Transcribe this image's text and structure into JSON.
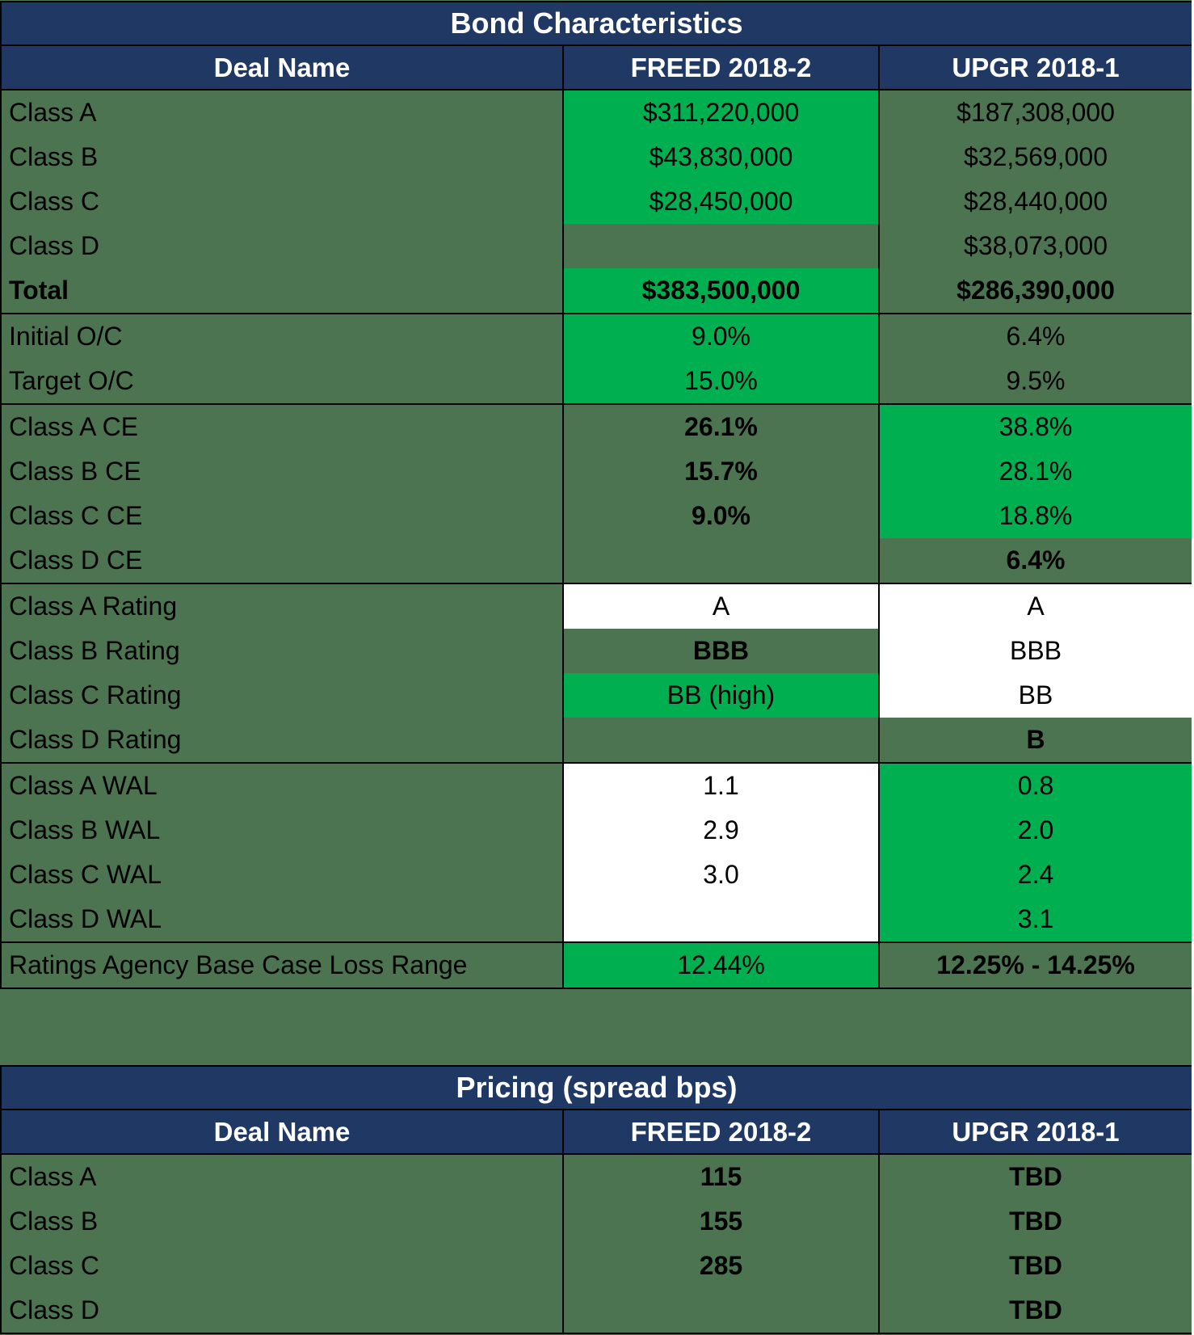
{
  "colors": {
    "header_navy": "#1F3864",
    "background_olive": "#4D7450",
    "highlight_green": "#00B050",
    "cell_white": "#FFFFFF",
    "border_black": "#000000",
    "header_text": "#FFFFFF",
    "body_text": "#000000"
  },
  "bond_table": {
    "title": "Bond Characteristics",
    "columns": [
      "Deal Name",
      "FREED 2018-2",
      "UPGR 2018-1"
    ],
    "rows": [
      {
        "label": "Class A",
        "label_bold": false,
        "freed": "$311,220,000",
        "freed_bg": "green",
        "freed_bold": false,
        "upgr": "$187,308,000",
        "upgr_bg": "olive",
        "upgr_bold": false,
        "group_end": false
      },
      {
        "label": "Class B",
        "label_bold": false,
        "freed": "$43,830,000",
        "freed_bg": "green",
        "freed_bold": false,
        "upgr": "$32,569,000",
        "upgr_bg": "olive",
        "upgr_bold": false,
        "group_end": false
      },
      {
        "label": "Class C",
        "label_bold": false,
        "freed": "$28,450,000",
        "freed_bg": "green",
        "freed_bold": false,
        "upgr": "$28,440,000",
        "upgr_bg": "olive",
        "upgr_bold": false,
        "group_end": false
      },
      {
        "label": "Class D",
        "label_bold": false,
        "freed": "",
        "freed_bg": "olive",
        "freed_bold": false,
        "upgr": "$38,073,000",
        "upgr_bg": "olive",
        "upgr_bold": false,
        "group_end": false
      },
      {
        "label": "Total",
        "label_bold": true,
        "freed": "$383,500,000",
        "freed_bg": "green",
        "freed_bold": true,
        "upgr": "$286,390,000",
        "upgr_bg": "olive",
        "upgr_bold": true,
        "group_end": true
      },
      {
        "label": "Initial O/C",
        "label_bold": false,
        "freed": "9.0%",
        "freed_bg": "green",
        "freed_bold": false,
        "upgr": "6.4%",
        "upgr_bg": "olive",
        "upgr_bold": false,
        "group_end": false
      },
      {
        "label": "Target O/C",
        "label_bold": false,
        "freed": "15.0%",
        "freed_bg": "green",
        "freed_bold": false,
        "upgr": "9.5%",
        "upgr_bg": "olive",
        "upgr_bold": false,
        "group_end": true
      },
      {
        "label": "Class A CE",
        "label_bold": false,
        "freed": "26.1%",
        "freed_bg": "olive",
        "freed_bold": true,
        "upgr": "38.8%",
        "upgr_bg": "green",
        "upgr_bold": false,
        "group_end": false
      },
      {
        "label": "Class B CE",
        "label_bold": false,
        "freed": "15.7%",
        "freed_bg": "olive",
        "freed_bold": true,
        "upgr": "28.1%",
        "upgr_bg": "green",
        "upgr_bold": false,
        "group_end": false
      },
      {
        "label": "Class C CE",
        "label_bold": false,
        "freed": "9.0%",
        "freed_bg": "olive",
        "freed_bold": true,
        "upgr": "18.8%",
        "upgr_bg": "green",
        "upgr_bold": false,
        "group_end": false
      },
      {
        "label": "Class D CE",
        "label_bold": false,
        "freed": "",
        "freed_bg": "olive",
        "freed_bold": false,
        "upgr": "6.4%",
        "upgr_bg": "olive",
        "upgr_bold": true,
        "group_end": true
      },
      {
        "label": "Class A Rating",
        "label_bold": false,
        "freed": "A",
        "freed_bg": "white",
        "freed_bold": false,
        "upgr": "A",
        "upgr_bg": "white",
        "upgr_bold": false,
        "group_end": false
      },
      {
        "label": "Class B Rating",
        "label_bold": false,
        "freed": "BBB",
        "freed_bg": "olive",
        "freed_bold": true,
        "upgr": "BBB",
        "upgr_bg": "white",
        "upgr_bold": false,
        "group_end": false
      },
      {
        "label": "Class C Rating",
        "label_bold": false,
        "freed": "BB (high)",
        "freed_bg": "green",
        "freed_bold": false,
        "upgr": "BB",
        "upgr_bg": "white",
        "upgr_bold": false,
        "group_end": false
      },
      {
        "label": "Class D Rating",
        "label_bold": false,
        "freed": "",
        "freed_bg": "olive",
        "freed_bold": false,
        "upgr": "B",
        "upgr_bg": "olive",
        "upgr_bold": true,
        "group_end": true
      },
      {
        "label": "Class A WAL",
        "label_bold": false,
        "freed": "1.1",
        "freed_bg": "white",
        "freed_bold": false,
        "upgr": "0.8",
        "upgr_bg": "green",
        "upgr_bold": false,
        "group_end": false
      },
      {
        "label": "Class B WAL",
        "label_bold": false,
        "freed": "2.9",
        "freed_bg": "white",
        "freed_bold": false,
        "upgr": "2.0",
        "upgr_bg": "green",
        "upgr_bold": false,
        "group_end": false
      },
      {
        "label": "Class C WAL",
        "label_bold": false,
        "freed": "3.0",
        "freed_bg": "white",
        "freed_bold": false,
        "upgr": "2.4",
        "upgr_bg": "green",
        "upgr_bold": false,
        "group_end": false
      },
      {
        "label": "Class D WAL",
        "label_bold": false,
        "freed": "",
        "freed_bg": "white",
        "freed_bold": false,
        "upgr": "3.1",
        "upgr_bg": "green",
        "upgr_bold": false,
        "group_end": true
      },
      {
        "label": "Ratings Agency Base Case Loss Range",
        "label_bold": false,
        "freed": "12.44%",
        "freed_bg": "green",
        "freed_bold": false,
        "upgr": "12.25% - 14.25%",
        "upgr_bg": "olive",
        "upgr_bold": true,
        "group_end": false
      }
    ]
  },
  "pricing_table": {
    "title": "Pricing (spread bps)",
    "columns": [
      "Deal Name",
      "FREED 2018-2",
      "UPGR 2018-1"
    ],
    "rows": [
      {
        "label": "Class A",
        "label_bold": false,
        "freed": "115",
        "freed_bg": "olive",
        "freed_bold": true,
        "upgr": "TBD",
        "upgr_bg": "olive",
        "upgr_bold": true,
        "group_end": false
      },
      {
        "label": "Class B",
        "label_bold": false,
        "freed": "155",
        "freed_bg": "olive",
        "freed_bold": true,
        "upgr": "TBD",
        "upgr_bg": "olive",
        "upgr_bold": true,
        "group_end": false
      },
      {
        "label": "Class C",
        "label_bold": false,
        "freed": "285",
        "freed_bg": "olive",
        "freed_bold": true,
        "upgr": "TBD",
        "upgr_bg": "olive",
        "upgr_bold": true,
        "group_end": false
      },
      {
        "label": "Class D",
        "label_bold": false,
        "freed": "",
        "freed_bg": "olive",
        "freed_bold": false,
        "upgr": "TBD",
        "upgr_bg": "olive",
        "upgr_bold": true,
        "group_end": false
      }
    ]
  },
  "chart_data": [
    {
      "type": "table",
      "title": "Bond Characteristics",
      "columns": [
        "Deal Name",
        "FREED 2018-2",
        "UPGR 2018-1"
      ],
      "rows": [
        [
          "Class A",
          "$311,220,000",
          "$187,308,000"
        ],
        [
          "Class B",
          "$43,830,000",
          "$32,569,000"
        ],
        [
          "Class C",
          "$28,450,000",
          "$28,440,000"
        ],
        [
          "Class D",
          "",
          "$38,073,000"
        ],
        [
          "Total",
          "$383,500,000",
          "$286,390,000"
        ],
        [
          "Initial O/C",
          "9.0%",
          "6.4%"
        ],
        [
          "Target O/C",
          "15.0%",
          "9.5%"
        ],
        [
          "Class A CE",
          "26.1%",
          "38.8%"
        ],
        [
          "Class B CE",
          "15.7%",
          "28.1%"
        ],
        [
          "Class C CE",
          "9.0%",
          "18.8%"
        ],
        [
          "Class D CE",
          "",
          "6.4%"
        ],
        [
          "Class A Rating",
          "A",
          "A"
        ],
        [
          "Class B Rating",
          "BBB",
          "BBB"
        ],
        [
          "Class C Rating",
          "BB (high)",
          "BB"
        ],
        [
          "Class D Rating",
          "",
          "B"
        ],
        [
          "Class A WAL",
          "1.1",
          "0.8"
        ],
        [
          "Class B WAL",
          "2.9",
          "2.0"
        ],
        [
          "Class C WAL",
          "3.0",
          "2.4"
        ],
        [
          "Class D WAL",
          "",
          "3.1"
        ],
        [
          "Ratings Agency Base Case Loss Range",
          "12.44%",
          "12.25% - 14.25%"
        ]
      ]
    },
    {
      "type": "table",
      "title": "Pricing (spread bps)",
      "columns": [
        "Deal Name",
        "FREED 2018-2",
        "UPGR 2018-1"
      ],
      "rows": [
        [
          "Class A",
          "115",
          "TBD"
        ],
        [
          "Class B",
          "155",
          "TBD"
        ],
        [
          "Class C",
          "285",
          "TBD"
        ],
        [
          "Class D",
          "",
          "TBD"
        ]
      ]
    }
  ]
}
